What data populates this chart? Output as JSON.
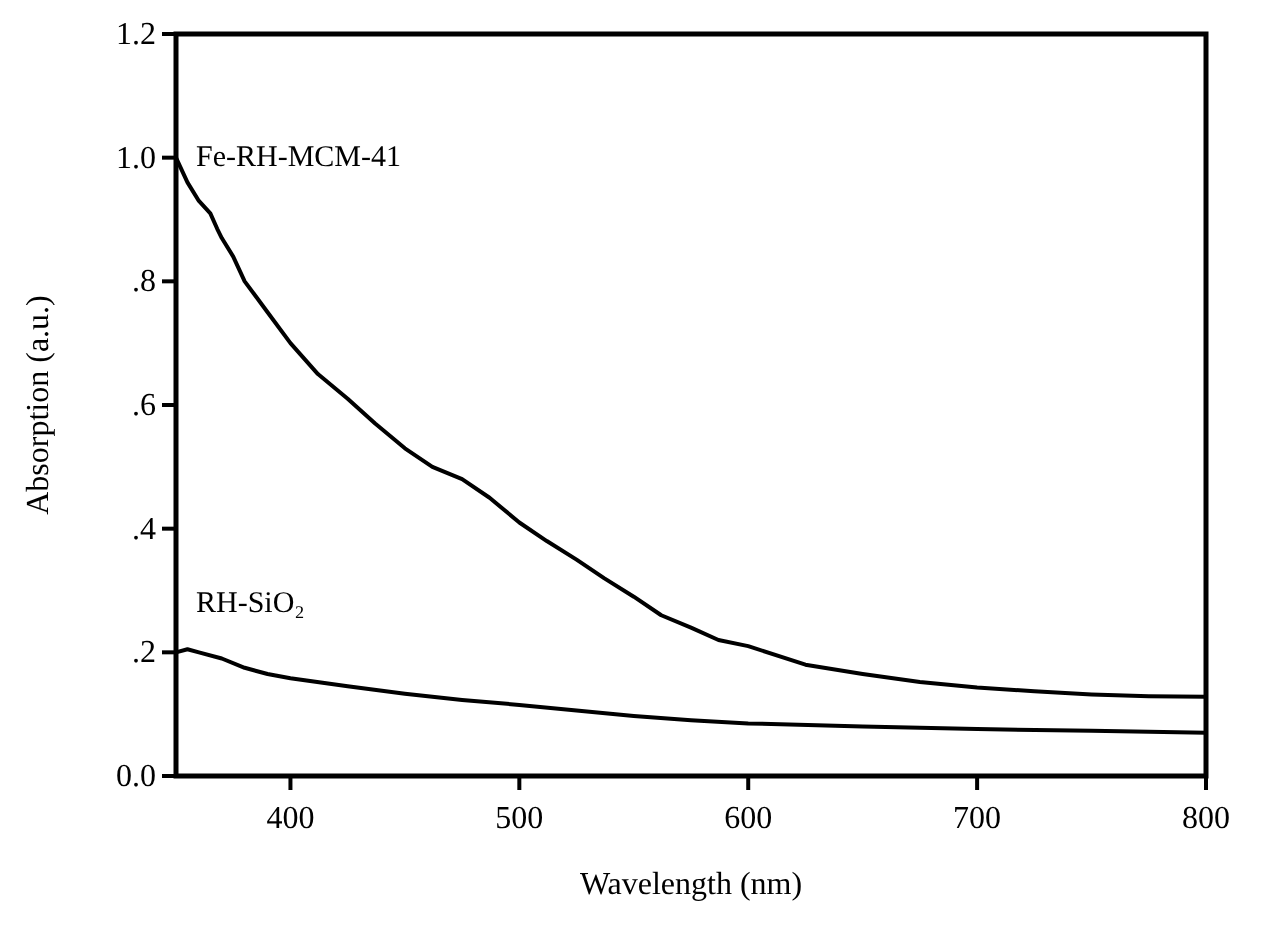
{
  "chart_data": {
    "type": "line",
    "xlabel": "Wavelength (nm)",
    "ylabel": "Absorption (a.u.)",
    "xlim": [
      350,
      800
    ],
    "xticks": [
      400,
      500,
      600,
      700,
      800
    ],
    "ylim": [
      0,
      1.2
    ],
    "yticks": [
      {
        "value": 0,
        "label": "0.0"
      },
      {
        "value": 0.2,
        "label": ".2"
      },
      {
        "value": 0.4,
        "label": ".4"
      },
      {
        "value": 0.6,
        "label": ".6"
      },
      {
        "value": 0.8,
        "label": ".8"
      },
      {
        "value": 1,
        "label": "1.0"
      },
      {
        "value": 1.2,
        "label": "1.2"
      }
    ],
    "grid": false,
    "marker": "none",
    "line_style": "solid",
    "series": [
      {
        "name": "Fe-RH-MCM-41",
        "color": "#000000",
        "x": [
          350,
          355,
          360,
          365,
          368,
          370,
          375,
          380,
          390,
          400,
          412,
          425,
          437,
          450,
          462,
          475,
          487,
          500,
          512,
          525,
          537,
          550,
          562,
          575,
          587,
          600,
          625,
          650,
          675,
          700,
          725,
          750,
          775,
          800
        ],
        "values": [
          1.0,
          0.96,
          0.93,
          0.91,
          0.885,
          0.87,
          0.84,
          0.8,
          0.75,
          0.7,
          0.65,
          0.61,
          0.57,
          0.53,
          0.5,
          0.48,
          0.45,
          0.41,
          0.38,
          0.35,
          0.32,
          0.29,
          0.26,
          0.24,
          0.22,
          0.21,
          0.18,
          0.165,
          0.152,
          0.143,
          0.137,
          0.132,
          0.129,
          0.128
        ]
      },
      {
        "name": "RH-SiO₂",
        "color": "#000000",
        "x": [
          350,
          355,
          360,
          370,
          380,
          390,
          400,
          425,
          450,
          475,
          500,
          525,
          550,
          575,
          600,
          650,
          700,
          750,
          800
        ],
        "values": [
          0.2,
          0.205,
          0.2,
          0.19,
          0.175,
          0.165,
          0.158,
          0.145,
          0.133,
          0.123,
          0.115,
          0.106,
          0.097,
          0.09,
          0.085,
          0.08,
          0.076,
          0.073,
          0.07
        ]
      }
    ]
  }
}
